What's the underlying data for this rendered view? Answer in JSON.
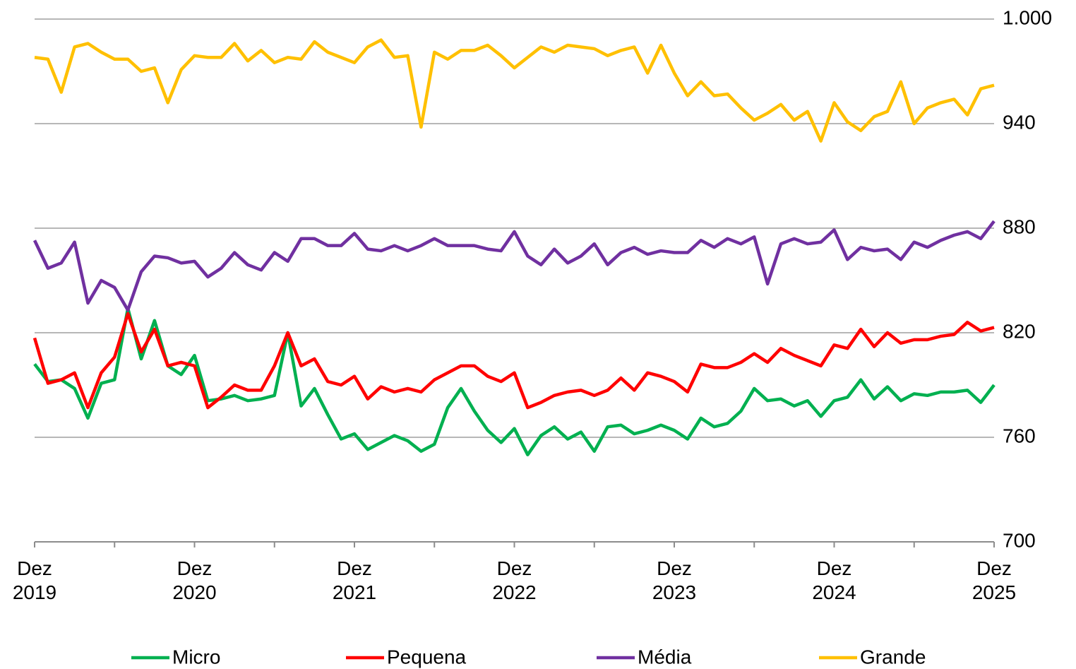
{
  "chart_data": {
    "type": "line",
    "categories": [
      "Dez 2019",
      null,
      null,
      null,
      null,
      null,
      null,
      null,
      null,
      null,
      null,
      null,
      "Dez 2020",
      null,
      null,
      null,
      null,
      null,
      null,
      null,
      null,
      null,
      null,
      null,
      "Dez 2021",
      null,
      null,
      null,
      null,
      null,
      null,
      null,
      null,
      null,
      null,
      null,
      "Dez 2022",
      null,
      null,
      null,
      null,
      null,
      null,
      null,
      null,
      null,
      null,
      null,
      "Dez 2023",
      null,
      null,
      null,
      null,
      null,
      null,
      null,
      null,
      null,
      null,
      null,
      "Dez 2024",
      null,
      null,
      null,
      null,
      null,
      null,
      null,
      null,
      null,
      null,
      null,
      "Dez 2025"
    ],
    "series": [
      {
        "name": "Micro",
        "color": "#00b050",
        "values": [
          802,
          792,
          793,
          788,
          771,
          791,
          793,
          834,
          805,
          827,
          801,
          796,
          807,
          781,
          782,
          784,
          781,
          782,
          784,
          820,
          778,
          788,
          773,
          759,
          762,
          753,
          757,
          761,
          758,
          752,
          756,
          777,
          788,
          775,
          764,
          757,
          765,
          750,
          761,
          766,
          759,
          763,
          752,
          766,
          767,
          762,
          764,
          767,
          764,
          759,
          771,
          766,
          768,
          775,
          788,
          781,
          782,
          778,
          781,
          772,
          781,
          783,
          793,
          782,
          789,
          781,
          785,
          784,
          786,
          786,
          787,
          780,
          790
        ]
      },
      {
        "name": "Pequena",
        "color": "#ff0000",
        "values": [
          817,
          791,
          793,
          797,
          777,
          797,
          806,
          831,
          809,
          822,
          801,
          803,
          801,
          777,
          783,
          790,
          787,
          787,
          801,
          820,
          801,
          805,
          792,
          790,
          795,
          782,
          789,
          786,
          788,
          786,
          793,
          797,
          801,
          801,
          795,
          792,
          797,
          777,
          780,
          784,
          786,
          787,
          784,
          787,
          794,
          787,
          797,
          795,
          792,
          786,
          802,
          800,
          800,
          803,
          808,
          803,
          811,
          807,
          804,
          801,
          813,
          811,
          822,
          812,
          820,
          814,
          816,
          816,
          818,
          819,
          826,
          821,
          823
        ]
      },
      {
        "name": "Média",
        "color": "#7030a0",
        "values": [
          873,
          857,
          860,
          872,
          837,
          850,
          846,
          833,
          855,
          864,
          863,
          860,
          861,
          852,
          857,
          866,
          859,
          856,
          866,
          861,
          874,
          874,
          870,
          870,
          877,
          868,
          867,
          870,
          867,
          870,
          874,
          870,
          870,
          870,
          868,
          867,
          878,
          864,
          859,
          868,
          860,
          864,
          871,
          859,
          866,
          869,
          865,
          867,
          866,
          866,
          873,
          869,
          874,
          871,
          875,
          848,
          871,
          874,
          871,
          872,
          879,
          862,
          869,
          867,
          868,
          862,
          872,
          869,
          873,
          876,
          878,
          874,
          884
        ]
      },
      {
        "name": "Grande",
        "color": "#ffc000",
        "values": [
          978,
          977,
          958,
          984,
          986,
          981,
          977,
          977,
          970,
          972,
          952,
          971,
          979,
          978,
          978,
          986,
          976,
          982,
          975,
          978,
          977,
          987,
          981,
          978,
          975,
          984,
          988,
          978,
          979,
          938,
          981,
          977,
          982,
          982,
          985,
          979,
          972,
          978,
          984,
          981,
          985,
          984,
          983,
          979,
          982,
          984,
          969,
          985,
          969,
          956,
          964,
          956,
          957,
          949,
          942,
          946,
          951,
          942,
          947,
          930,
          952,
          941,
          936,
          944,
          947,
          964,
          940,
          949,
          952,
          954,
          945,
          960,
          962
        ]
      }
    ],
    "ylim": [
      700,
      1000
    ],
    "yticks": [
      700,
      760,
      820,
      880,
      940,
      {
        "value": 1000,
        "label": "1.000"
      }
    ],
    "grid": true,
    "legend": "bottom"
  }
}
